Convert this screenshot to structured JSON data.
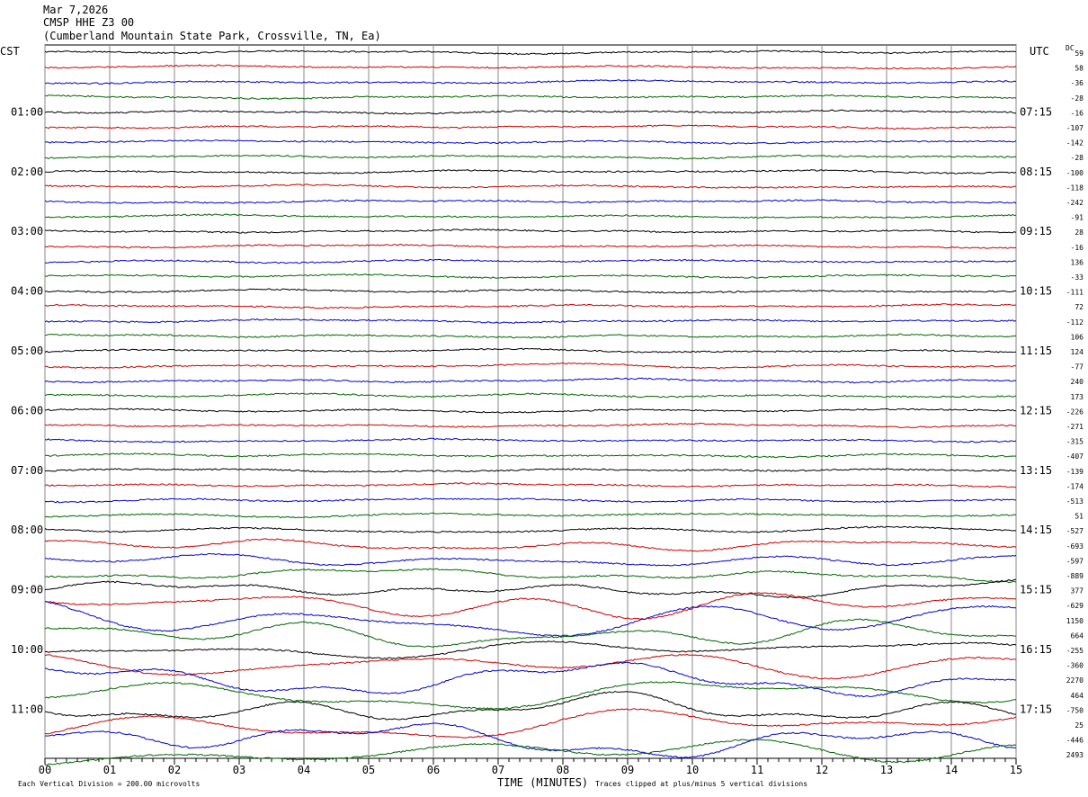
{
  "header": {
    "date": "Mar 7,2026",
    "station": "CMSP HHE Z3 00",
    "location": "(Cumberland Mountain State Park, Crossville, TN, Ea)"
  },
  "left_tz": "CST",
  "right_tz": "UTC",
  "dc_label": "DC",
  "footer": {
    "scale_note": "Each Vertical Division =  200.00 microvolts",
    "xlabel": "TIME (MINUTES)",
    "clip_note": "Traces clipped at plus/minus 5 vertical divisions"
  },
  "colors": {
    "trace_cycle": [
      "#000000",
      "#cc0000",
      "#0000cc",
      "#006600"
    ]
  },
  "chart_data": {
    "type": "line",
    "title": "CMSP HHE Z3 00",
    "xlabel": "TIME (MINUTES)",
    "x_ticks": [
      "00",
      "01",
      "02",
      "03",
      "04",
      "05",
      "06",
      "07",
      "08",
      "09",
      "10",
      "11",
      "12",
      "13",
      "14",
      "15"
    ],
    "xlim": [
      0,
      15
    ],
    "rows_per_hour": 4,
    "row_count": 48,
    "left_hour_labels": [
      "01:00",
      "02:00",
      "03:00",
      "04:00",
      "05:00",
      "06:00",
      "07:00",
      "08:00",
      "09:00",
      "10:00",
      "11:00"
    ],
    "right_hour_labels": [
      "07:15",
      "08:15",
      "09:15",
      "10:15",
      "11:15",
      "12:15",
      "13:15",
      "14:15",
      "15:15",
      "16:15",
      "17:15"
    ],
    "dc_offsets": [
      "59",
      "58",
      "-36",
      "-28",
      "-16",
      "-107",
      "-142",
      "-28",
      "-100",
      "-118",
      "-242",
      "-91",
      "28",
      "-16",
      "136",
      "-33",
      "-111",
      "72",
      "-112",
      "106",
      "124",
      "-77",
      "240",
      "173",
      "-226",
      "-271",
      "-315",
      "-407",
      "-139",
      "-174",
      "-513",
      "51",
      "-527",
      "-693",
      "-597",
      "-889",
      "377",
      "-629",
      "1150",
      "664",
      "-255",
      "-360",
      "2270",
      "464",
      "-750",
      "25",
      "-446",
      "2493"
    ],
    "amplitude_per_row": [
      1,
      1,
      1,
      1,
      1,
      1,
      1,
      1,
      1,
      1,
      1,
      1,
      1,
      1,
      1,
      1,
      1,
      1,
      1,
      1,
      1.2,
      1.5,
      1.2,
      1.2,
      1,
      1,
      1,
      1,
      1,
      1,
      1.3,
      1.3,
      2,
      4,
      4,
      4,
      6,
      9,
      12,
      9,
      6,
      8,
      10,
      10,
      10,
      11,
      12,
      12
    ],
    "legend": []
  }
}
